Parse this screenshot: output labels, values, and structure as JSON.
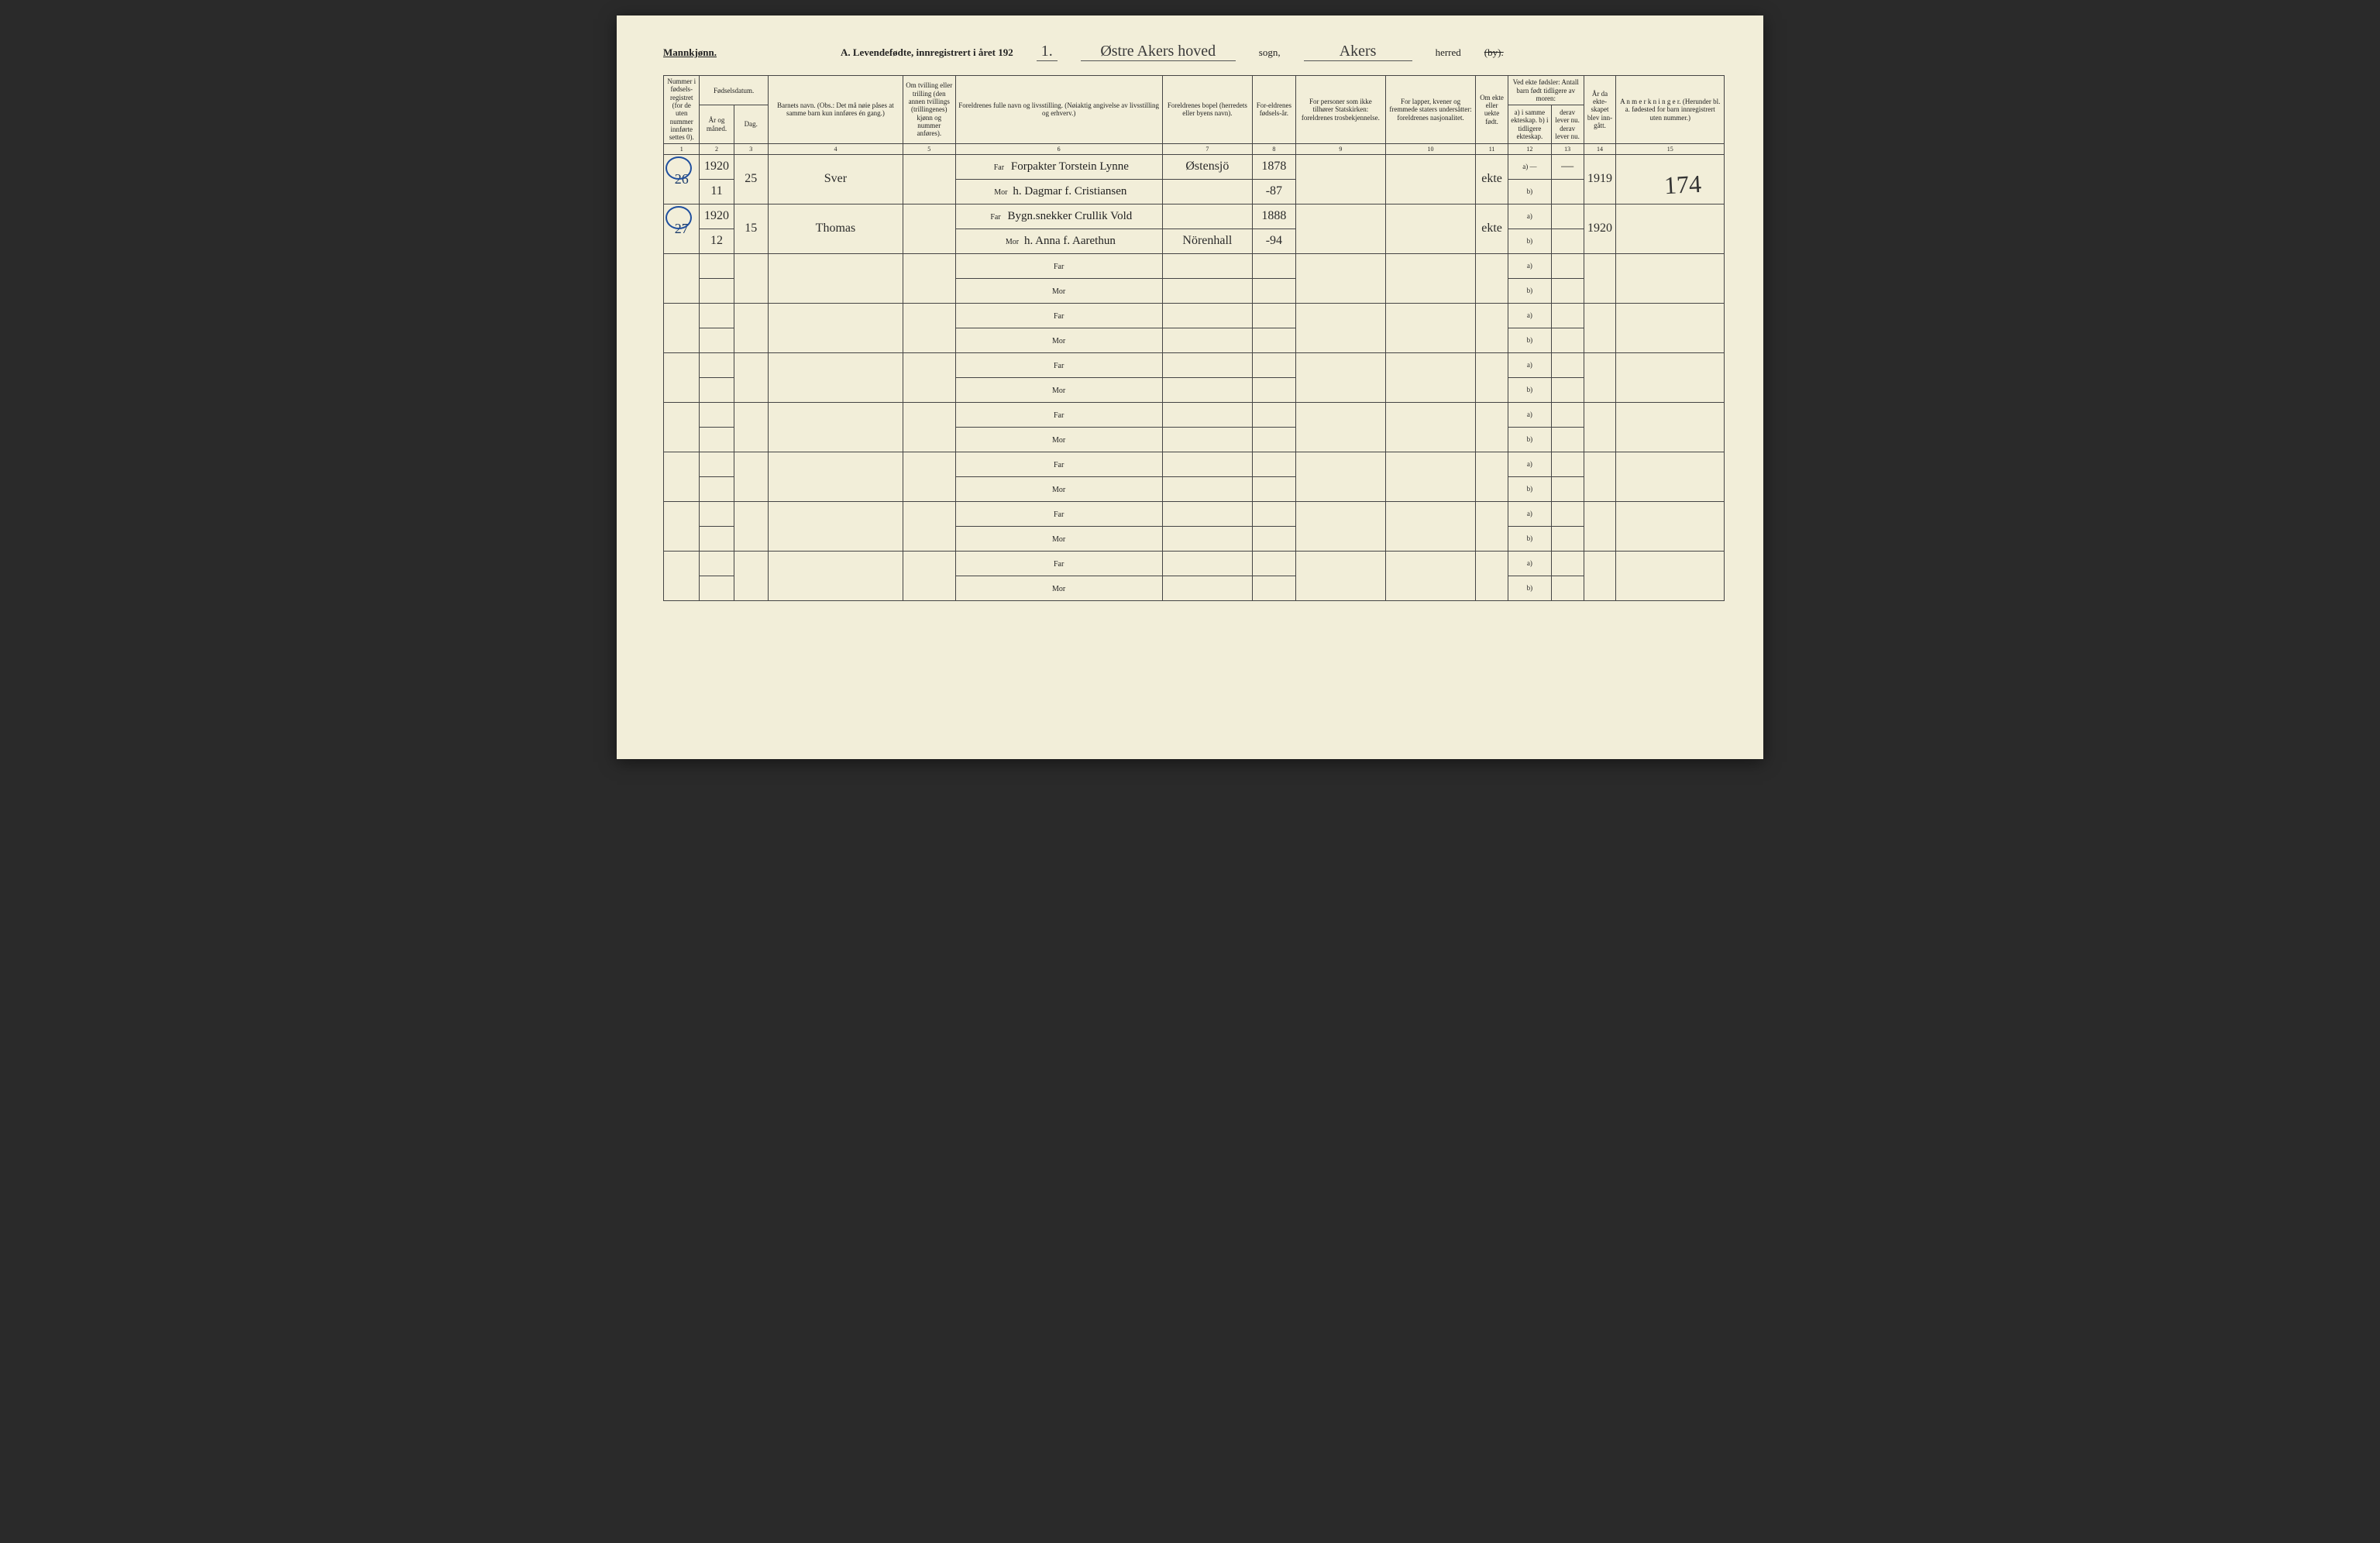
{
  "header": {
    "gender_label": "Mannkjønn.",
    "title_prefix": "A.  Levendefødte, innregistrert i året 192",
    "year_suffix": "1.",
    "sogn_hand": "Østre  Akers hoved",
    "sogn_label": "sogn,",
    "herred_hand": "Akers",
    "herred_label": "herred",
    "by_struck": "(by)."
  },
  "page_number_hand": "174",
  "colheads": {
    "c1": "Nummer i fødsels-registret (for de uten nummer innførte settes 0).",
    "c2_3_top": "Fødselsdatum.",
    "c2": "År og måned.",
    "c3": "Dag.",
    "c4": "Barnets navn.\n(Obs.: Det må nøie påses at samme barn kun innføres én gang.)",
    "c5": "Om tvilling eller trilling (den annen tvillings (trillingenes) kjønn og nummer anføres).",
    "c6": "Foreldrenes fulle navn og livsstilling.\n(Nøiaktig angivelse av livsstilling og erhverv.)",
    "c7": "Foreldrenes bopel (herredets eller byens navn).",
    "c8": "For-eldrenes fødsels-år.",
    "c9": "For personer som ikke tilhører Statskirken: foreldrenes trosbekjennelse.",
    "c10": "For lapper, kvener og fremmede staters undersåtter: foreldrenes nasjonalitet.",
    "c11": "Om ekte eller uekte født.",
    "c12_13_top": "Ved ekte fødsler:\nAntall barn født tidligere av moren:",
    "c12": "a) i samme ekteskap.\nb) i tidligere ekteskap.",
    "c13": "derav lever nu.\nderav lever nu.",
    "c14": "År da ekte-skapet blev inn-gått.",
    "c15": "A n m e r k n i n g e r.\n(Herunder bl. a. fødested for barn innregistrert uten nummer.)"
  },
  "colnums": [
    "1",
    "2",
    "3",
    "4",
    "5",
    "6",
    "7",
    "8",
    "9",
    "10",
    "11",
    "12",
    "13",
    "14",
    "15"
  ],
  "rows": [
    {
      "num": "26",
      "year_month_a": "1920",
      "year_month_b": "11",
      "day": "25",
      "name": "Sver",
      "far": "Forpakter Torstein Lynne",
      "mor": "h. Dagmar f. Cristiansen",
      "bopel_a": "Østensjö",
      "bopel_b": "",
      "far_year": "1878",
      "mor_year": "-87",
      "ekte": "ekte",
      "c12a": "a)  —",
      "c12b": "b)",
      "c13a": "—",
      "year_marriage": "1919"
    },
    {
      "num": "27",
      "year_month_a": "1920",
      "year_month_b": "12",
      "day": "15",
      "name": "Thomas",
      "far": "Bygn.snekker Crullik Vold",
      "mor": "h. Anna f. Aarethun",
      "bopel_a": "",
      "bopel_b": "Nörenhall",
      "far_year": "1888",
      "mor_year": "-94",
      "ekte": "ekte",
      "c12a": "a)",
      "c12b": "b)",
      "c13a": "",
      "year_marriage": "1920"
    }
  ],
  "labels": {
    "far": "Far",
    "mor": "Mor",
    "a": "a)",
    "b": "b)"
  }
}
